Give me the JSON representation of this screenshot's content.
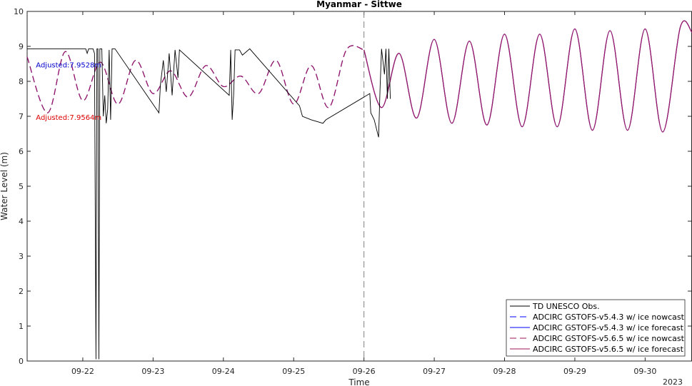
{
  "chart_data": {
    "type": "line",
    "title": "Myanmar - Sittwe",
    "xlabel": "Time",
    "ylabel": "Water Level (m)",
    "year_label": "2023",
    "xlim": [
      "2023-09-21T05:00",
      "2023-09-30T16:00"
    ],
    "ylim": [
      0,
      10
    ],
    "yticks": [
      0,
      1,
      2,
      3,
      4,
      5,
      6,
      7,
      8,
      9,
      10
    ],
    "xticks": [
      {
        "date": "2023-09-22",
        "label": "09-22"
      },
      {
        "date": "2023-09-23",
        "label": "09-23"
      },
      {
        "date": "2023-09-24",
        "label": "09-24"
      },
      {
        "date": "2023-09-25",
        "label": "09-25"
      },
      {
        "date": "2023-09-26",
        "label": "09-26"
      },
      {
        "date": "2023-09-27",
        "label": "09-27"
      },
      {
        "date": "2023-09-28",
        "label": "09-28"
      },
      {
        "date": "2023-09-29",
        "label": "09-29"
      },
      {
        "date": "2023-09-30",
        "label": "09-30"
      }
    ],
    "nowcast_forecast_divider": "2023-09-26T00:00",
    "grid": false,
    "legend_location": "bottom-right",
    "annotations": [
      {
        "text": "Adjusted:7.9528m",
        "x": "2023-09-21T08:00",
        "y": 8.48,
        "color": "#0000cc"
      },
      {
        "text": "Adjusted:7.9564m",
        "x": "2023-09-21T08:00",
        "y": 6.98,
        "color": "#dd0000"
      }
    ],
    "series": [
      {
        "name": "TD UNESCO Obs.",
        "color": "#000000",
        "style": "solid",
        "points": [
          [
            "2023-09-21T05:00",
            8.93
          ],
          [
            "2023-09-22T01:00",
            8.93
          ],
          [
            "2023-09-22T01:30",
            8.8
          ],
          [
            "2023-09-22T02:00",
            8.93
          ],
          [
            "2023-09-22T03:30",
            8.93
          ],
          [
            "2023-09-22T04:00",
            8.8
          ],
          [
            "2023-09-22T04:30",
            0.05
          ],
          [
            "2023-09-22T04:50",
            8.93
          ],
          [
            "2023-09-22T05:10",
            8.93
          ],
          [
            "2023-09-22T05:30",
            0.05
          ],
          [
            "2023-09-22T05:50",
            8.93
          ],
          [
            "2023-09-22T06:30",
            8.93
          ],
          [
            "2023-09-22T07:00",
            7.0
          ],
          [
            "2023-09-22T07:30",
            7.6
          ],
          [
            "2023-09-22T08:00",
            6.8
          ],
          [
            "2023-09-22T08:30",
            7.2
          ],
          [
            "2023-09-22T09:00",
            8.9
          ],
          [
            "2023-09-22T09:30",
            6.9
          ],
          [
            "2023-09-22T10:00",
            8.93
          ],
          [
            "2023-09-22T11:00",
            8.93
          ],
          [
            "2023-09-23T02:00",
            7.1
          ],
          [
            "2023-09-23T02:30",
            7.9
          ],
          [
            "2023-09-23T03:30",
            8.6
          ],
          [
            "2023-09-23T04:30",
            7.7
          ],
          [
            "2023-09-23T05:30",
            8.8
          ],
          [
            "2023-09-23T06:30",
            7.6
          ],
          [
            "2023-09-23T07:30",
            8.9
          ],
          [
            "2023-09-23T08:30",
            8.1
          ],
          [
            "2023-09-23T09:00",
            8.9
          ],
          [
            "2023-09-24T02:00",
            7.6
          ],
          [
            "2023-09-24T02:30",
            8.9
          ],
          [
            "2023-09-24T03:00",
            6.9
          ],
          [
            "2023-09-24T03:30",
            7.6
          ],
          [
            "2023-09-24T04:00",
            8.9
          ],
          [
            "2023-09-24T05:30",
            8.9
          ],
          [
            "2023-09-24T06:30",
            8.75
          ],
          [
            "2023-09-24T09:00",
            8.93
          ],
          [
            "2023-09-25T02:00",
            7.3
          ],
          [
            "2023-09-25T03:00",
            7.0
          ],
          [
            "2023-09-25T06:00",
            6.9
          ],
          [
            "2023-09-25T10:00",
            6.8
          ],
          [
            "2023-09-25T11:00",
            6.9
          ],
          [
            "2023-09-26T02:00",
            7.65
          ],
          [
            "2023-09-26T02:20",
            7.1
          ],
          [
            "2023-09-26T03:30",
            6.9
          ],
          [
            "2023-09-26T05:00",
            6.4
          ],
          [
            "2023-09-26T05:30",
            7.8
          ],
          [
            "2023-09-26T06:00",
            8.93
          ],
          [
            "2023-09-26T07:00",
            8.2
          ],
          [
            "2023-09-26T07:30",
            8.93
          ],
          [
            "2023-09-26T08:00",
            7.5
          ],
          [
            "2023-09-26T08:30",
            8.93
          ],
          [
            "2023-09-26T09:00",
            7.5
          ]
        ]
      },
      {
        "name": "ADCIRC GSTOFS-v5.4.3 w/ ice nowcast",
        "color": "#0000ff",
        "style": "dashed",
        "points": [
          [
            "2023-09-21T05:00",
            8.7
          ],
          [
            "2023-09-21T12:00",
            7.1
          ],
          [
            "2023-09-21T18:00",
            8.85
          ],
          [
            "2023-09-22T00:00",
            7.45
          ],
          [
            "2023-09-22T06:00",
            8.55
          ],
          [
            "2023-09-22T12:00",
            7.35
          ],
          [
            "2023-09-22T18:00",
            8.6
          ],
          [
            "2023-09-23T00:00",
            7.65
          ],
          [
            "2023-09-23T06:00",
            8.3
          ],
          [
            "2023-09-23T12:00",
            7.55
          ],
          [
            "2023-09-23T18:00",
            8.45
          ],
          [
            "2023-09-24T00:00",
            7.85
          ],
          [
            "2023-09-24T06:00",
            8.15
          ],
          [
            "2023-09-24T12:00",
            7.65
          ],
          [
            "2023-09-24T18:00",
            8.6
          ],
          [
            "2023-09-25T00:00",
            7.35
          ],
          [
            "2023-09-25T06:00",
            8.45
          ],
          [
            "2023-09-25T12:00",
            7.25
          ],
          [
            "2023-09-25T18:00",
            8.9
          ],
          [
            "2023-09-26T00:00",
            8.9
          ]
        ]
      },
      {
        "name": "ADCIRC GSTOFS-v5.4.3 w/ ice forecast",
        "color": "#0000ff",
        "style": "solid",
        "points": [
          [
            "2023-09-26T00:00",
            8.9
          ],
          [
            "2023-09-26T06:00",
            7.25
          ],
          [
            "2023-09-26T12:00",
            8.8
          ],
          [
            "2023-09-26T18:00",
            6.95
          ],
          [
            "2023-09-27T00:00",
            9.2
          ],
          [
            "2023-09-27T06:00",
            6.8
          ],
          [
            "2023-09-27T12:00",
            9.15
          ],
          [
            "2023-09-27T18:00",
            6.75
          ],
          [
            "2023-09-28T00:00",
            9.35
          ],
          [
            "2023-09-28T06:00",
            6.7
          ],
          [
            "2023-09-28T12:00",
            9.35
          ],
          [
            "2023-09-28T18:00",
            6.7
          ],
          [
            "2023-09-29T00:00",
            9.5
          ],
          [
            "2023-09-29T06:00",
            6.6
          ],
          [
            "2023-09-29T12:00",
            9.45
          ],
          [
            "2023-09-29T18:00",
            6.6
          ],
          [
            "2023-09-30T00:00",
            9.5
          ],
          [
            "2023-09-30T06:00",
            6.55
          ],
          [
            "2023-09-30T12:00",
            9.55
          ],
          [
            "2023-09-30T16:00",
            9.4
          ]
        ]
      },
      {
        "name": "ADCIRC GSTOFS-v5.6.5 w/ ice nowcast",
        "color": "#a0155a",
        "style": "dashed",
        "points": [
          [
            "2023-09-21T05:00",
            8.7
          ],
          [
            "2023-09-21T12:00",
            7.1
          ],
          [
            "2023-09-21T18:00",
            8.85
          ],
          [
            "2023-09-22T00:00",
            7.45
          ],
          [
            "2023-09-22T06:00",
            8.55
          ],
          [
            "2023-09-22T12:00",
            7.35
          ],
          [
            "2023-09-22T18:00",
            8.6
          ],
          [
            "2023-09-23T00:00",
            7.65
          ],
          [
            "2023-09-23T06:00",
            8.3
          ],
          [
            "2023-09-23T12:00",
            7.55
          ],
          [
            "2023-09-23T18:00",
            8.45
          ],
          [
            "2023-09-24T00:00",
            7.85
          ],
          [
            "2023-09-24T06:00",
            8.15
          ],
          [
            "2023-09-24T12:00",
            7.65
          ],
          [
            "2023-09-24T18:00",
            8.6
          ],
          [
            "2023-09-25T00:00",
            7.35
          ],
          [
            "2023-09-25T06:00",
            8.45
          ],
          [
            "2023-09-25T12:00",
            7.25
          ],
          [
            "2023-09-25T18:00",
            8.9
          ],
          [
            "2023-09-26T00:00",
            8.9
          ]
        ]
      },
      {
        "name": "ADCIRC GSTOFS-v5.6.5 w/ ice forecast",
        "color": "#a0155a",
        "style": "solid",
        "points": [
          [
            "2023-09-26T00:00",
            8.9
          ],
          [
            "2023-09-26T06:00",
            7.25
          ],
          [
            "2023-09-26T12:00",
            8.8
          ],
          [
            "2023-09-26T18:00",
            6.95
          ],
          [
            "2023-09-27T00:00",
            9.2
          ],
          [
            "2023-09-27T06:00",
            6.8
          ],
          [
            "2023-09-27T12:00",
            9.15
          ],
          [
            "2023-09-27T18:00",
            6.75
          ],
          [
            "2023-09-28T00:00",
            9.35
          ],
          [
            "2023-09-28T06:00",
            6.7
          ],
          [
            "2023-09-28T12:00",
            9.35
          ],
          [
            "2023-09-28T18:00",
            6.7
          ],
          [
            "2023-09-29T00:00",
            9.5
          ],
          [
            "2023-09-29T06:00",
            6.6
          ],
          [
            "2023-09-29T12:00",
            9.45
          ],
          [
            "2023-09-29T18:00",
            6.6
          ],
          [
            "2023-09-30T00:00",
            9.5
          ],
          [
            "2023-09-30T06:00",
            6.55
          ],
          [
            "2023-09-30T12:00",
            9.55
          ],
          [
            "2023-09-30T16:00",
            9.4
          ]
        ]
      }
    ]
  }
}
